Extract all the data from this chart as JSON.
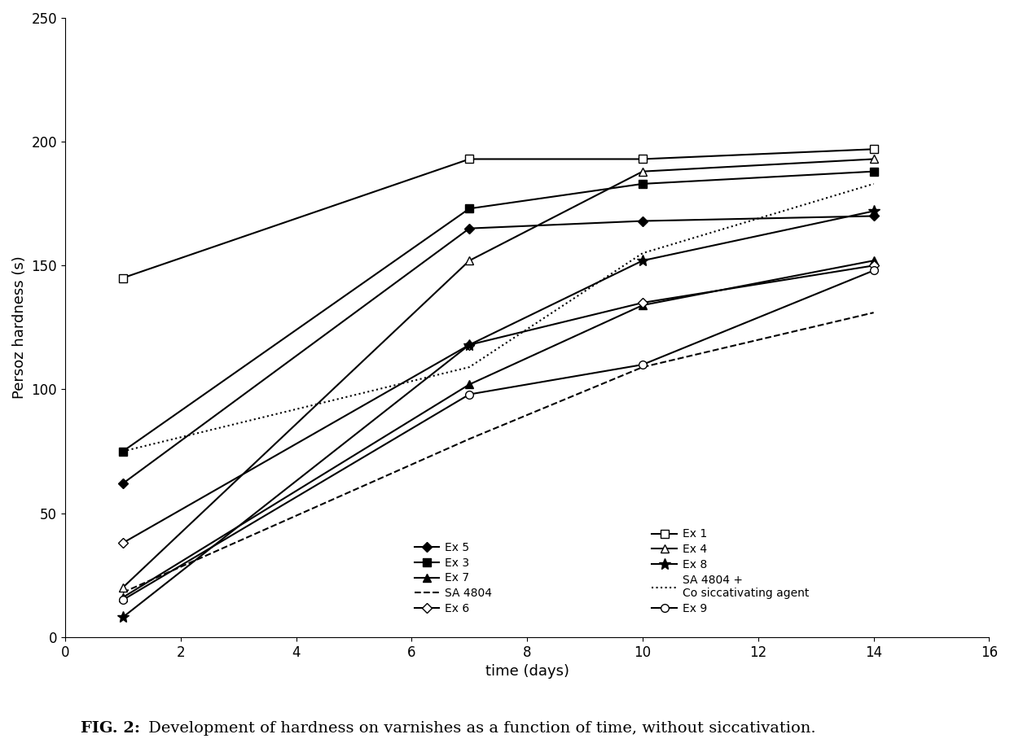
{
  "title_bold": "FIG. 2:",
  "title_normal": " Development of hardness on varnishes as a function of time, without siccativation.",
  "xlabel": "time (days)",
  "ylabel": "Persoz hardness (s)",
  "xlim": [
    0,
    16
  ],
  "ylim": [
    0,
    250
  ],
  "xticks": [
    0,
    2,
    4,
    6,
    8,
    10,
    12,
    14,
    16
  ],
  "yticks": [
    0,
    50,
    100,
    150,
    200,
    250
  ],
  "series": {
    "Ex 5": {
      "x": [
        1,
        7,
        10,
        14
      ],
      "y": [
        62,
        165,
        168,
        170
      ],
      "color": "black",
      "linestyle": "-",
      "marker": "D",
      "markerfacecolor": "black",
      "markersize": 6
    },
    "Ex 3": {
      "x": [
        1,
        7,
        10,
        14
      ],
      "y": [
        75,
        173,
        183,
        188
      ],
      "color": "black",
      "linestyle": "-",
      "marker": "s",
      "markerfacecolor": "black",
      "markersize": 7
    },
    "Ex 7": {
      "x": [
        1,
        7,
        10,
        14
      ],
      "y": [
        16,
        102,
        134,
        152
      ],
      "color": "black",
      "linestyle": "-",
      "marker": "^",
      "markerfacecolor": "black",
      "markersize": 7
    },
    "SA 4804": {
      "x": [
        1,
        7,
        10,
        14
      ],
      "y": [
        18,
        80,
        109,
        131
      ],
      "color": "black",
      "linestyle": "--",
      "marker": null,
      "markerfacecolor": null,
      "markersize": 0
    },
    "Ex 6": {
      "x": [
        1,
        7,
        10,
        14
      ],
      "y": [
        38,
        118,
        135,
        150
      ],
      "color": "black",
      "linestyle": "-",
      "marker": "D",
      "markerfacecolor": "white",
      "markersize": 6
    },
    "Ex 1": {
      "x": [
        1,
        7,
        10,
        14
      ],
      "y": [
        145,
        193,
        193,
        197
      ],
      "color": "black",
      "linestyle": "-",
      "marker": "s",
      "markerfacecolor": "white",
      "markersize": 7
    },
    "Ex 4": {
      "x": [
        1,
        7,
        10,
        14
      ],
      "y": [
        20,
        152,
        188,
        193
      ],
      "color": "black",
      "linestyle": "-",
      "marker": "^",
      "markerfacecolor": "white",
      "markersize": 7
    },
    "Ex 8": {
      "x": [
        1,
        7,
        10,
        14
      ],
      "y": [
        8,
        118,
        152,
        172
      ],
      "color": "black",
      "linestyle": "-",
      "marker": "*",
      "markerfacecolor": "black",
      "markersize": 10
    },
    "SA 4804 +\nCo siccativating agent": {
      "x": [
        1,
        7,
        10,
        14
      ],
      "y": [
        75,
        109,
        155,
        183
      ],
      "color": "black",
      "linestyle": ":",
      "marker": null,
      "markerfacecolor": null,
      "markersize": 0
    },
    "Ex 9": {
      "x": [
        1,
        7,
        10,
        14
      ],
      "y": [
        15,
        98,
        110,
        148
      ],
      "color": "black",
      "linestyle": "-",
      "marker": "o",
      "markerfacecolor": "white",
      "markersize": 7
    }
  },
  "background_color": "#ffffff",
  "figsize": [
    12.4,
    9.13
  ],
  "dpi": 100
}
